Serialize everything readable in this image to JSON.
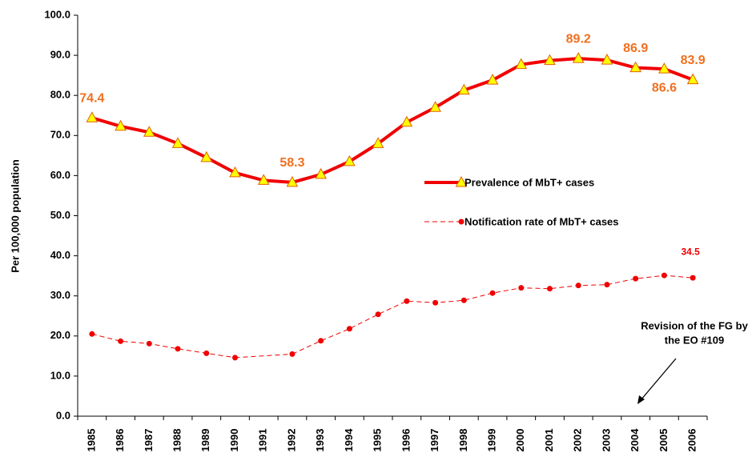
{
  "chart_data": {
    "type": "line",
    "y_label": "Per 100,000 population",
    "categories": [
      "1985",
      "1986",
      "1987",
      "1988",
      "1989",
      "1990",
      "1991",
      "1992",
      "1993",
      "1994",
      "1995",
      "1996",
      "1997",
      "1998",
      "1999",
      "2000",
      "2001",
      "2002",
      "2003",
      "2004",
      "2005",
      "2006"
    ],
    "series": [
      {
        "name": "Prevalence of MbT+ cases",
        "color": "#f00000",
        "marker_color": "#ffff00",
        "label_color": "#f07020",
        "values": [
          74.4,
          72.3,
          70.8,
          68.0,
          64.5,
          60.7,
          58.8,
          58.3,
          60.3,
          63.5,
          68.0,
          73.3,
          77.0,
          81.3,
          83.8,
          87.7,
          88.7,
          89.2,
          88.8,
          86.9,
          86.6,
          83.9
        ],
        "value_labels": [
          "74.4",
          null,
          null,
          null,
          null,
          null,
          null,
          "58.3",
          null,
          null,
          null,
          null,
          null,
          null,
          null,
          null,
          null,
          "89.2",
          null,
          "86.9",
          "86.6",
          "83.9"
        ]
      },
      {
        "name": "Notification rate of MbT+ cases",
        "color": "#f00000",
        "label_color": "#f00000",
        "values": [
          20.5,
          18.7,
          18.1,
          16.8,
          15.7,
          14.6,
          null,
          15.5,
          18.8,
          21.8,
          25.4,
          28.7,
          28.3,
          28.9,
          30.7,
          32.0,
          31.8,
          32.6,
          32.8,
          34.3,
          35.1,
          34.5
        ],
        "value_labels": [
          null,
          null,
          null,
          null,
          null,
          null,
          null,
          null,
          null,
          null,
          null,
          null,
          null,
          null,
          null,
          null,
          null,
          null,
          null,
          null,
          null,
          "34.5"
        ]
      }
    ],
    "ylim": [
      0,
      100
    ],
    "yticks": [
      {
        "value": 0,
        "label": "0.0"
      },
      {
        "value": 10,
        "label": "10.0"
      },
      {
        "value": 20,
        "label": "20.0"
      },
      {
        "value": 30,
        "label": "30.0"
      },
      {
        "value": 40,
        "label": "40.0"
      },
      {
        "value": 50,
        "label": "50.0"
      },
      {
        "value": 60,
        "label": "60.0"
      },
      {
        "value": 70,
        "label": "70.0"
      },
      {
        "value": 80,
        "label": "80.0"
      },
      {
        "value": 90,
        "label": "90.0"
      },
      {
        "value": 100,
        "label": "100.0"
      }
    ],
    "grid": false,
    "legend": "center",
    "annotation": [
      "Revision of the FG by",
      "the EO #109"
    ]
  }
}
